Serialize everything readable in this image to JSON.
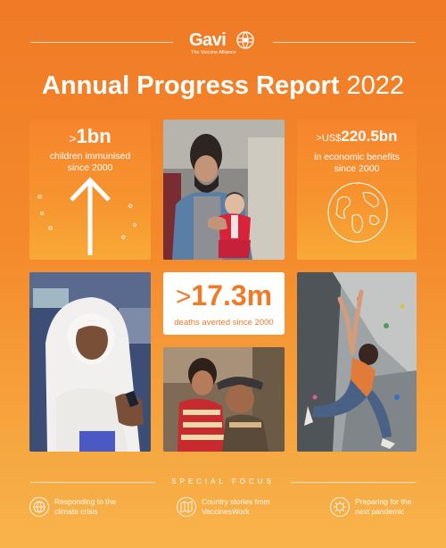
{
  "header": {
    "brand": "Gavi",
    "tagline": "The Vaccine Alliance",
    "title_bold": "Annual Progress Report",
    "title_year": "2022"
  },
  "stats": {
    "children": {
      "prefix": ">",
      "number": "1bn",
      "line1": "children immunised",
      "line2": "since 2000"
    },
    "benefits": {
      "prefix": ">US$",
      "number": "220.5bn",
      "line1": "in economic benefits",
      "line2": "since 2000"
    },
    "deaths": {
      "prefix": ">",
      "number": "17.3m",
      "caption": "deaths averted since 2000"
    }
  },
  "photos": {
    "father_baby": "father-holding-baby-photo",
    "health_worker": "health-worker-with-phone-photo",
    "family": "family-embrace-photo",
    "climber": "climber-on-wall-photo"
  },
  "special_focus": {
    "heading": "SPECIAL FOCUS",
    "items": [
      {
        "line1": "Responding to the",
        "line2": "climate crisis",
        "icon": "globe-icon"
      },
      {
        "line1": "Country stories from",
        "line2": "VaccinesWork",
        "icon": "map-icon"
      },
      {
        "line1": "Preparing for the",
        "line2": "next pandemic",
        "icon": "virus-icon"
      }
    ]
  }
}
